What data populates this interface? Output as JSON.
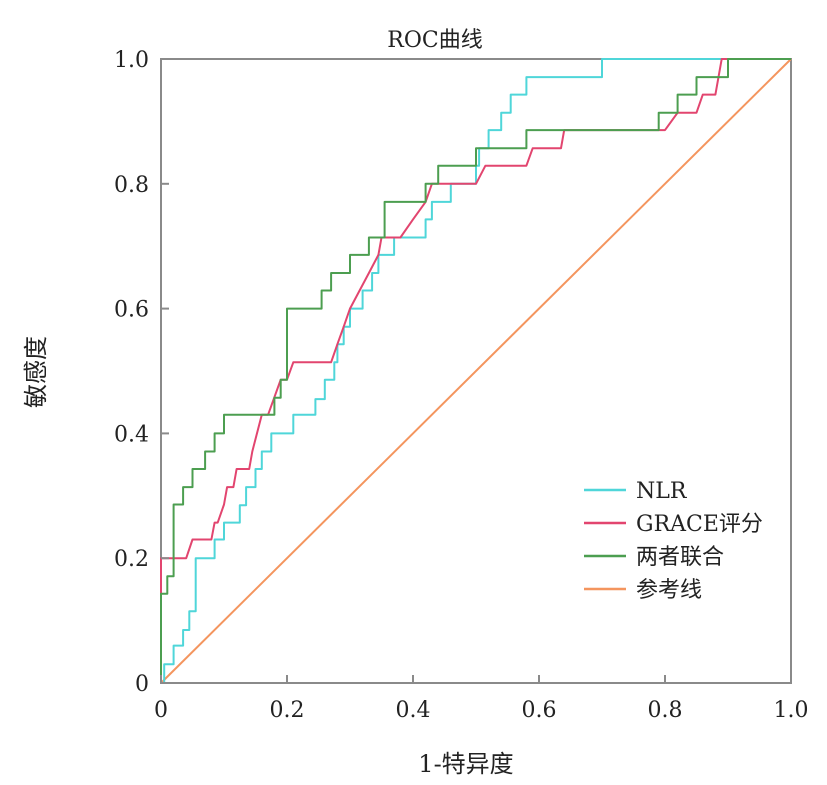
{
  "chart_data": {
    "type": "line",
    "title": "ROC曲线",
    "xlabel": "1-特异度",
    "ylabel": "敏感度",
    "xlim": [
      0,
      1
    ],
    "ylim": [
      0,
      1
    ],
    "x_ticks": [
      "0",
      "0.2",
      "0.4",
      "0.6",
      "0.8",
      "1.0"
    ],
    "y_ticks": [
      "0",
      "0.2",
      "0.4",
      "0.6",
      "0.8",
      "1.0"
    ],
    "legend_position": "lower-right",
    "grid": false,
    "series": [
      {
        "name": "NLR",
        "color": "#4fd6d9",
        "points": [
          [
            0,
            0
          ],
          [
            0.005,
            0
          ],
          [
            0.005,
            0.03
          ],
          [
            0.02,
            0.03
          ],
          [
            0.02,
            0.06
          ],
          [
            0.035,
            0.06
          ],
          [
            0.035,
            0.085
          ],
          [
            0.045,
            0.085
          ],
          [
            0.045,
            0.115
          ],
          [
            0.055,
            0.115
          ],
          [
            0.055,
            0.2
          ],
          [
            0.085,
            0.2
          ],
          [
            0.085,
            0.23
          ],
          [
            0.1,
            0.23
          ],
          [
            0.1,
            0.257
          ],
          [
            0.125,
            0.257
          ],
          [
            0.125,
            0.285
          ],
          [
            0.135,
            0.285
          ],
          [
            0.135,
            0.314
          ],
          [
            0.15,
            0.314
          ],
          [
            0.15,
            0.343
          ],
          [
            0.16,
            0.343
          ],
          [
            0.16,
            0.371
          ],
          [
            0.175,
            0.371
          ],
          [
            0.175,
            0.4
          ],
          [
            0.21,
            0.4
          ],
          [
            0.21,
            0.43
          ],
          [
            0.245,
            0.43
          ],
          [
            0.245,
            0.455
          ],
          [
            0.26,
            0.455
          ],
          [
            0.26,
            0.486
          ],
          [
            0.275,
            0.486
          ],
          [
            0.275,
            0.514
          ],
          [
            0.28,
            0.514
          ],
          [
            0.28,
            0.543
          ],
          [
            0.29,
            0.543
          ],
          [
            0.29,
            0.571
          ],
          [
            0.3,
            0.571
          ],
          [
            0.3,
            0.6
          ],
          [
            0.32,
            0.6
          ],
          [
            0.32,
            0.629
          ],
          [
            0.335,
            0.629
          ],
          [
            0.335,
            0.657
          ],
          [
            0.345,
            0.657
          ],
          [
            0.345,
            0.686
          ],
          [
            0.37,
            0.686
          ],
          [
            0.37,
            0.714
          ],
          [
            0.42,
            0.714
          ],
          [
            0.42,
            0.743
          ],
          [
            0.43,
            0.743
          ],
          [
            0.43,
            0.771
          ],
          [
            0.46,
            0.771
          ],
          [
            0.46,
            0.8
          ],
          [
            0.5,
            0.8
          ],
          [
            0.5,
            0.829
          ],
          [
            0.505,
            0.829
          ],
          [
            0.505,
            0.857
          ],
          [
            0.52,
            0.857
          ],
          [
            0.52,
            0.886
          ],
          [
            0.54,
            0.886
          ],
          [
            0.54,
            0.914
          ],
          [
            0.555,
            0.914
          ],
          [
            0.555,
            0.943
          ],
          [
            0.58,
            0.943
          ],
          [
            0.58,
            0.971
          ],
          [
            0.7,
            0.971
          ],
          [
            0.7,
            1
          ],
          [
            1,
            1
          ]
        ]
      },
      {
        "name": "GRACE评分",
        "color": "#e2456f",
        "points": [
          [
            0,
            0
          ],
          [
            0,
            0.2
          ],
          [
            0.02,
            0.2
          ],
          [
            0.02,
            0.2
          ],
          [
            0.04,
            0.2
          ],
          [
            0.05,
            0.23
          ],
          [
            0.08,
            0.23
          ],
          [
            0.085,
            0.257
          ],
          [
            0.09,
            0.257
          ],
          [
            0.1,
            0.286
          ],
          [
            0.105,
            0.314
          ],
          [
            0.115,
            0.314
          ],
          [
            0.12,
            0.343
          ],
          [
            0.14,
            0.343
          ],
          [
            0.145,
            0.371
          ],
          [
            0.16,
            0.43
          ],
          [
            0.17,
            0.43
          ],
          [
            0.19,
            0.486
          ],
          [
            0.2,
            0.486
          ],
          [
            0.21,
            0.514
          ],
          [
            0.27,
            0.514
          ],
          [
            0.28,
            0.543
          ],
          [
            0.29,
            0.571
          ],
          [
            0.3,
            0.6
          ],
          [
            0.33,
            0.657
          ],
          [
            0.345,
            0.686
          ],
          [
            0.35,
            0.714
          ],
          [
            0.38,
            0.714
          ],
          [
            0.4,
            0.743
          ],
          [
            0.42,
            0.771
          ],
          [
            0.43,
            0.8
          ],
          [
            0.5,
            0.8
          ],
          [
            0.515,
            0.829
          ],
          [
            0.58,
            0.829
          ],
          [
            0.59,
            0.857
          ],
          [
            0.635,
            0.857
          ],
          [
            0.64,
            0.886
          ],
          [
            0.8,
            0.886
          ],
          [
            0.82,
            0.914
          ],
          [
            0.85,
            0.914
          ],
          [
            0.86,
            0.943
          ],
          [
            0.88,
            0.943
          ],
          [
            0.89,
            1
          ],
          [
            1,
            1
          ]
        ]
      },
      {
        "name": "两者联合",
        "color": "#4c9e50",
        "points": [
          [
            0,
            0
          ],
          [
            0,
            0.143
          ],
          [
            0.01,
            0.143
          ],
          [
            0.01,
            0.171
          ],
          [
            0.02,
            0.171
          ],
          [
            0.02,
            0.286
          ],
          [
            0.035,
            0.286
          ],
          [
            0.035,
            0.314
          ],
          [
            0.05,
            0.314
          ],
          [
            0.05,
            0.343
          ],
          [
            0.07,
            0.343
          ],
          [
            0.07,
            0.371
          ],
          [
            0.085,
            0.371
          ],
          [
            0.085,
            0.4
          ],
          [
            0.1,
            0.4
          ],
          [
            0.1,
            0.43
          ],
          [
            0.14,
            0.43
          ],
          [
            0.14,
            0.43
          ],
          [
            0.18,
            0.43
          ],
          [
            0.18,
            0.457
          ],
          [
            0.19,
            0.457
          ],
          [
            0.19,
            0.486
          ],
          [
            0.2,
            0.486
          ],
          [
            0.2,
            0.6
          ],
          [
            0.255,
            0.6
          ],
          [
            0.255,
            0.629
          ],
          [
            0.27,
            0.629
          ],
          [
            0.27,
            0.657
          ],
          [
            0.3,
            0.657
          ],
          [
            0.3,
            0.686
          ],
          [
            0.33,
            0.686
          ],
          [
            0.33,
            0.714
          ],
          [
            0.355,
            0.714
          ],
          [
            0.355,
            0.771
          ],
          [
            0.42,
            0.771
          ],
          [
            0.42,
            0.8
          ],
          [
            0.44,
            0.8
          ],
          [
            0.44,
            0.829
          ],
          [
            0.5,
            0.829
          ],
          [
            0.5,
            0.857
          ],
          [
            0.58,
            0.857
          ],
          [
            0.58,
            0.886
          ],
          [
            0.79,
            0.886
          ],
          [
            0.79,
            0.914
          ],
          [
            0.82,
            0.914
          ],
          [
            0.82,
            0.943
          ],
          [
            0.85,
            0.943
          ],
          [
            0.85,
            0.971
          ],
          [
            0.9,
            0.971
          ],
          [
            0.9,
            1
          ],
          [
            1,
            1
          ]
        ]
      },
      {
        "name": "参考线",
        "color": "#f4955e",
        "points": [
          [
            0,
            0
          ],
          [
            1,
            1
          ]
        ]
      }
    ]
  }
}
